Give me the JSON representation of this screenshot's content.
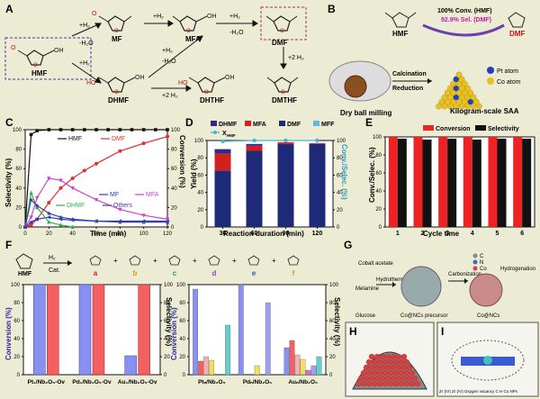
{
  "panels": {
    "a": "A",
    "b": "B",
    "c": "C",
    "d": "D",
    "e": "E",
    "f": "F",
    "g": "G",
    "h": "H",
    "i": "I"
  },
  "schemeA": {
    "HMF": "HMF",
    "MF": "MF",
    "MFA": "MFA",
    "DMF": "DMF",
    "DHMF": "DHMF",
    "DHTHF": "DHTHF",
    "DMTHF": "DMTHF",
    "pH2": "+H₂",
    "mH2O": "-H₂O",
    "p2H2": "+2 H₂"
  },
  "panelB": {
    "HMF": "HMF",
    "DMF": "DMF",
    "conv": "100% Conv. (HMF)",
    "sel": "92.9% Sel. (DMF)",
    "ball": "Dry ball milling",
    "calc": "Calcination",
    "red": "Reduction",
    "kg": "Kilogram-scale SAA",
    "pt": "Pt atom",
    "co": "Co atom"
  },
  "panelC": {
    "xlabel": "Time (min)",
    "ylabel_left": "Selectivity (%)",
    "ylabel_right": "Conversion (%)",
    "xticks": [
      0,
      20,
      40,
      60,
      80,
      100,
      120
    ],
    "yticks": [
      0,
      20,
      40,
      60,
      80,
      100
    ],
    "legend": [
      "HMF",
      "DMF",
      "MF",
      "MFA",
      "DHMF",
      "Others"
    ]
  },
  "panelD": {
    "xlabel": "Reaction duration (min)",
    "ylabel_left": "Yield (%)",
    "ylabel_right": "Conv./Selec. (%)",
    "xticks": [
      "30",
      "60",
      "90",
      "120"
    ],
    "yticks": [
      0,
      20,
      40,
      60,
      80,
      100
    ],
    "legend": [
      "DHMF",
      "MFA",
      "DMF",
      "MFF",
      "X"
    ],
    "legend_sub": "HMF"
  },
  "panelE": {
    "xlabel": "Cycle time",
    "ylabel": "Conv./Selec. (%)",
    "xticks": [
      "1",
      "2",
      "3",
      "4",
      "5",
      "6"
    ],
    "yticks": [
      0,
      20,
      40,
      60,
      80,
      100
    ],
    "legend": [
      "Conversion",
      "Selectivity"
    ]
  },
  "panelF": {
    "h2": "H₂",
    "cat": "Cat.",
    "HMF": "HMF",
    "products": [
      "a",
      "b",
      "c",
      "d",
      "e",
      "f"
    ],
    "left_xticks": [
      "Pt₁/Nb₂O₅-Ov",
      "Pd₁/Nb₂O₅-Ov",
      "Au₁/Nb₂O₅-Ov"
    ],
    "right_xticks": [
      "Ptₙ/Nb₂O₅",
      "Pdₙ/Nb₂O₅",
      "Auₙ/Nb₂O₅"
    ],
    "ylabel_conv": "Conversion (%)",
    "ylabel_sel": "Selectivity (%)",
    "yticks": [
      0,
      20,
      40,
      60,
      80,
      100
    ]
  },
  "panelG": {
    "cobalt": "Cobalt acetate",
    "melamine": "Melamine",
    "glucose": "Glucose",
    "hydro": "Hydrothermal",
    "carb": "Carbonization",
    "hydrog": "Hydrogenation",
    "precursor": "Co@NCs precursor",
    "product": "Co@NCs",
    "legendC": "C",
    "legendN": "N",
    "legendCo": "Co"
  },
  "panelI": {
    "legend": "Zr (IV)   Zr (IV)   Oxygen vacancy   C   H   Co NPs"
  },
  "colors": {
    "HMF": "#111111",
    "DMF": "#e03030",
    "MF": "#1f3fbf",
    "MFA": "#d040d0",
    "DHMF": "#2faf4f",
    "Others": "#3f3fa0",
    "conv": "#ee2222",
    "selec": "#111111",
    "Xline": "#3cb9d8",
    "dhmfBar": "#2a2a8f",
    "mfaBar": "#d02020",
    "dmfBar": "#1e2a78",
    "mffBar": "#5fb8e0"
  },
  "chart_data": [
    {
      "type": "line",
      "panel": "C",
      "xlabel": "Time (min)",
      "ylabel": "Selectivity (%)",
      "ylabel_right": "Conversion (%)",
      "xlim": [
        0,
        120
      ],
      "ylim": [
        0,
        100
      ],
      "series": [
        {
          "name": "HMF",
          "axis": "right",
          "x": [
            0,
            5,
            10,
            20,
            30,
            40,
            50,
            60,
            70,
            80,
            90,
            100,
            110,
            120
          ],
          "y": [
            0,
            95,
            99,
            100,
            100,
            100,
            100,
            100,
            100,
            100,
            100,
            100,
            100,
            100
          ]
        },
        {
          "name": "DMF",
          "axis": "left",
          "x": [
            0,
            5,
            10,
            20,
            30,
            40,
            50,
            60,
            80,
            100,
            120
          ],
          "y": [
            0,
            2,
            8,
            25,
            40,
            50,
            58,
            65,
            78,
            86,
            93
          ]
        },
        {
          "name": "MF",
          "axis": "left",
          "x": [
            0,
            5,
            10,
            20,
            30,
            40,
            60,
            80,
            100,
            120
          ],
          "y": [
            0,
            5,
            8,
            10,
            8,
            7,
            6,
            6,
            6,
            6
          ]
        },
        {
          "name": "MFA",
          "axis": "left",
          "x": [
            0,
            5,
            10,
            20,
            30,
            40,
            60,
            80,
            100,
            120
          ],
          "y": [
            0,
            10,
            30,
            50,
            48,
            40,
            28,
            18,
            12,
            8
          ]
        },
        {
          "name": "DHMF",
          "axis": "left",
          "x": [
            0,
            5,
            10,
            20,
            30,
            40
          ],
          "y": [
            0,
            35,
            20,
            5,
            2,
            0
          ]
        },
        {
          "name": "Others",
          "axis": "left",
          "x": [
            0,
            5,
            10,
            20,
            30,
            40,
            60,
            80,
            100,
            120
          ],
          "y": [
            0,
            28,
            22,
            14,
            10,
            8,
            6,
            5,
            5,
            5
          ]
        }
      ]
    },
    {
      "type": "bar",
      "panel": "D",
      "categories": [
        "30",
        "60",
        "90",
        "120"
      ],
      "stack": true,
      "series": [
        {
          "name": "DMF",
          "values": [
            65,
            88,
            96,
            96
          ]
        },
        {
          "name": "MFA",
          "values": [
            20,
            6,
            2,
            1
          ]
        },
        {
          "name": "DHMF",
          "values": [
            5,
            2,
            0,
            0
          ]
        },
        {
          "name": "MFF",
          "values": [
            0,
            0,
            0,
            0
          ]
        }
      ],
      "line": {
        "name": "X_HMF",
        "values": [
          99,
          100,
          100,
          100
        ]
      },
      "ylim": [
        0,
        100
      ]
    },
    {
      "type": "bar",
      "panel": "E",
      "categories": [
        "1",
        "2",
        "3",
        "4",
        "5",
        "6"
      ],
      "series": [
        {
          "name": "Conversion",
          "values": [
            100,
            100,
            100,
            100,
            100,
            100
          ]
        },
        {
          "name": "Selectivity",
          "values": [
            98,
            97,
            98,
            97,
            98,
            98
          ]
        }
      ],
      "ylim": [
        0,
        100
      ]
    },
    {
      "type": "bar",
      "panel": "F-left",
      "categories": [
        "Pt₁/Nb₂O₅-Ov",
        "Pd₁/Nb₂O₅-Ov",
        "Au₁/Nb₂O₅-Ov"
      ],
      "series": [
        {
          "name": "Conversion",
          "values": [
            100,
            100,
            21
          ]
        },
        {
          "name": "Selectivity",
          "values": [
            100,
            100,
            100
          ]
        }
      ],
      "ylim": [
        0,
        100
      ]
    },
    {
      "type": "bar",
      "panel": "F-right",
      "categories": [
        "Ptₙ/Nb₂O₅",
        "Pdₙ/Nb₂O₅",
        "Auₙ/Nb₂O₅"
      ],
      "series": [
        {
          "name": "Conversion",
          "values": [
            95,
            100,
            30
          ]
        },
        {
          "name": "a",
          "values": [
            15,
            0,
            38
          ]
        },
        {
          "name": "b",
          "values": [
            20,
            0,
            22
          ]
        },
        {
          "name": "c",
          "values": [
            16,
            10,
            17
          ]
        },
        {
          "name": "d",
          "values": [
            0,
            0,
            5
          ]
        },
        {
          "name": "e",
          "values": [
            0,
            80,
            10
          ]
        },
        {
          "name": "f",
          "values": [
            55,
            0,
            20
          ]
        }
      ],
      "ylim": [
        0,
        100
      ]
    }
  ]
}
